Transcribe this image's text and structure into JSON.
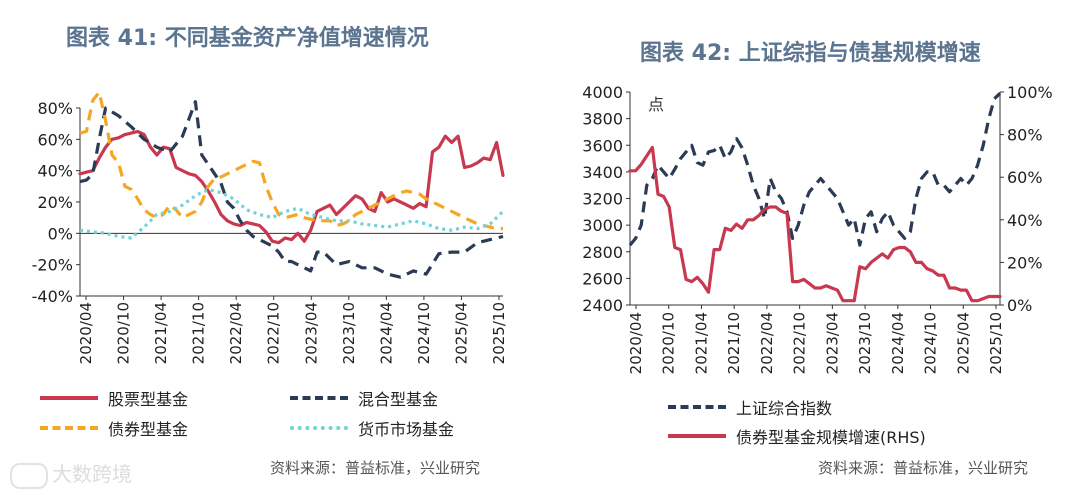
{
  "watermark": "大数跨境",
  "chart_data": [
    {
      "type": "line",
      "title": "图表 41: 不同基金资产净值增速情况",
      "source": "资料来源：普益标准，兴业研究",
      "y_ticks": [
        "80%",
        "60%",
        "40%",
        "20%",
        "0%",
        "-20%",
        "-40%"
      ],
      "ylim": [
        -40,
        80
      ],
      "x_tick_labels": [
        "2020/04",
        "2020/10",
        "2021/04",
        "2021/10",
        "2022/04",
        "2022/10",
        "2023/04",
        "2023/10",
        "2024/04",
        "2024/10",
        "2025/04",
        "2025/10"
      ],
      "x_range": [
        0,
        66
      ],
      "legend_labels": [
        "股票型基金",
        "混合型基金",
        "债券型基金",
        "货币市场基金"
      ],
      "series": [
        {
          "name": "股票型基金",
          "color": "#c8384f",
          "dash": "none",
          "x": [
            0,
            1,
            2,
            3,
            4,
            5,
            6,
            7,
            8,
            9,
            10,
            11,
            12,
            13,
            14,
            15,
            16,
            17,
            18,
            19,
            20,
            21,
            22,
            23,
            24,
            25,
            26,
            27,
            28,
            29,
            30,
            31,
            32,
            33,
            34,
            35,
            36,
            37,
            38,
            39,
            40,
            41,
            42,
            43,
            44,
            45,
            46,
            47,
            48,
            49,
            50,
            51,
            52,
            53,
            54,
            55,
            56,
            57,
            58,
            59,
            60,
            61,
            62,
            63,
            64,
            65,
            66
          ],
          "values": [
            38,
            39,
            40,
            48,
            55,
            60,
            61,
            63,
            64,
            65,
            63,
            55,
            50,
            55,
            54,
            42,
            40,
            38,
            37,
            33,
            27,
            20,
            12,
            8,
            6,
            5,
            7,
            6,
            5,
            1,
            -5,
            -6,
            -3,
            -4,
            0,
            -5,
            2,
            14,
            16,
            18,
            12,
            16,
            20,
            24,
            22,
            16,
            14,
            26,
            20,
            22,
            20,
            18,
            16,
            19,
            17,
            52,
            55,
            62,
            58,
            62,
            42,
            43,
            45,
            48,
            47,
            58,
            37
          ]
        },
        {
          "name": "混合型基金",
          "color": "#2b3a55",
          "dash": "11,7",
          "x": [
            0,
            1,
            2,
            3,
            4,
            6,
            8,
            10,
            12,
            14,
            16,
            18,
            19,
            20,
            21,
            22,
            23,
            24,
            25,
            26,
            27,
            28,
            30,
            31,
            32,
            33,
            34,
            35,
            36,
            37,
            38,
            40,
            42,
            44,
            46,
            48,
            50,
            52,
            54,
            56,
            58,
            60,
            62,
            64,
            65,
            66
          ],
          "values": [
            33,
            34,
            38,
            60,
            80,
            75,
            68,
            60,
            55,
            52,
            62,
            84,
            50,
            44,
            38,
            32,
            20,
            16,
            8,
            2,
            -2,
            -4,
            -8,
            -12,
            -18,
            -18,
            -20,
            -22,
            -24,
            -12,
            -12,
            -20,
            -18,
            -22,
            -22,
            -26,
            -28,
            -24,
            -26,
            -13,
            -12,
            -12,
            -6,
            -4,
            -3,
            -2
          ]
        },
        {
          "name": "债券型基金",
          "color": "#f5a623",
          "dash": "11,7",
          "x": [
            0,
            1,
            2,
            3,
            4,
            5,
            6,
            7,
            8,
            9,
            10,
            11,
            12,
            13,
            14,
            15,
            16,
            17,
            18,
            19,
            20,
            21,
            22,
            23,
            24,
            25,
            26,
            27,
            28,
            29,
            30,
            31,
            32,
            33,
            34,
            35,
            36,
            37,
            38,
            39,
            40,
            41,
            42,
            43,
            44,
            45,
            46,
            47,
            48,
            49,
            50,
            51,
            52,
            53,
            54,
            55,
            56,
            57,
            58,
            59,
            60,
            61,
            62,
            63,
            64,
            65,
            66
          ],
          "values": [
            64,
            65,
            85,
            90,
            72,
            50,
            45,
            30,
            28,
            22,
            15,
            12,
            10,
            12,
            18,
            15,
            10,
            12,
            14,
            20,
            30,
            35,
            36,
            38,
            40,
            42,
            44,
            46,
            45,
            30,
            20,
            12,
            10,
            11,
            12,
            10,
            9,
            8,
            8,
            8,
            5,
            6,
            8,
            12,
            14,
            16,
            18,
            20,
            22,
            24,
            26,
            27,
            26,
            25,
            22,
            20,
            18,
            16,
            14,
            12,
            10,
            8,
            6,
            5,
            4,
            3,
            3
          ]
        },
        {
          "name": "货币市场基金",
          "color": "#6fd3d8",
          "dash": "3,4",
          "x": [
            0,
            2,
            4,
            6,
            8,
            10,
            12,
            14,
            16,
            18,
            20,
            22,
            24,
            26,
            28,
            30,
            32,
            34,
            36,
            38,
            40,
            42,
            44,
            46,
            48,
            50,
            52,
            54,
            56,
            58,
            60,
            62,
            64,
            66
          ],
          "values": [
            2,
            1,
            0,
            -2,
            -3,
            4,
            12,
            14,
            18,
            24,
            28,
            26,
            22,
            15,
            12,
            10,
            14,
            16,
            12,
            10,
            8,
            8,
            6,
            5,
            4,
            6,
            8,
            6,
            3,
            2,
            4,
            3,
            6,
            14
          ]
        }
      ]
    },
    {
      "type": "line",
      "title": "图表 42: 上证综指与债基规模增速",
      "source": "资料来源：普益标准，兴业研究",
      "y_ticks": [
        "4000",
        "3800",
        "3600",
        "3400",
        "3200",
        "3000",
        "2800",
        "2600",
        "2400"
      ],
      "ylim": [
        2400,
        4000
      ],
      "y_right_ticks": [
        "100%",
        "80%",
        "60%",
        "40%",
        "20%",
        "0%"
      ],
      "ylim_right": [
        0,
        100
      ],
      "y_unit_label": "点",
      "x_tick_labels": [
        "2020/04",
        "2020/10",
        "2021/04",
        "2021/10",
        "2022/04",
        "2022/10",
        "2023/04",
        "2023/10",
        "2024/04",
        "2024/10",
        "2025/04",
        "2025/10"
      ],
      "x_range": [
        0,
        66
      ],
      "legend_labels": [
        "上证综合指数",
        "债券型基金规模增速(RHS)"
      ],
      "series": [
        {
          "name": "上证综合指数",
          "axis": "left",
          "color": "#2b3a55",
          "dash": "11,7",
          "x": [
            0,
            1,
            2,
            3,
            4,
            5,
            6,
            7,
            8,
            9,
            10,
            11,
            12,
            13,
            14,
            15,
            16,
            17,
            18,
            19,
            20,
            21,
            22,
            23,
            24,
            25,
            26,
            27,
            28,
            29,
            30,
            31,
            32,
            33,
            34,
            35,
            36,
            37,
            38,
            39,
            40,
            41,
            42,
            43,
            44,
            45,
            46,
            47,
            48,
            49,
            50,
            51,
            52,
            53,
            54,
            55,
            56,
            57,
            58,
            59,
            60,
            61,
            62,
            63,
            64,
            65,
            66
          ],
          "values": [
            2850,
            2900,
            3000,
            3300,
            3350,
            3450,
            3400,
            3350,
            3420,
            3500,
            3550,
            3600,
            3470,
            3450,
            3550,
            3560,
            3600,
            3500,
            3550,
            3650,
            3580,
            3450,
            3300,
            3200,
            3050,
            3350,
            3250,
            3200,
            3100,
            2900,
            3000,
            3150,
            3250,
            3300,
            3350,
            3300,
            3250,
            3200,
            3100,
            3000,
            3050,
            2850,
            3050,
            3100,
            2950,
            3050,
            3100,
            3000,
            2950,
            2900,
            2950,
            3200,
            3350,
            3400,
            3400,
            3300,
            3300,
            3250,
            3300,
            3350,
            3300,
            3350,
            3450,
            3600,
            3800,
            3950,
            3990
          ]
        },
        {
          "name": "债券型基金规模增速(RHS)",
          "axis": "right",
          "color": "#c8384f",
          "dash": "none",
          "x": [
            0,
            1,
            2,
            3,
            4,
            5,
            6,
            7,
            8,
            9,
            10,
            11,
            12,
            13,
            14,
            15,
            16,
            17,
            18,
            19,
            20,
            21,
            22,
            23,
            24,
            25,
            26,
            27,
            28,
            29,
            30,
            31,
            32,
            33,
            34,
            35,
            36,
            37,
            38,
            39,
            40,
            41,
            42,
            43,
            44,
            45,
            46,
            47,
            48,
            49,
            50,
            51,
            52,
            53,
            54,
            55,
            56,
            57,
            58,
            59,
            60,
            61,
            62,
            63,
            64,
            65,
            66
          ],
          "values": [
            63,
            63,
            66,
            70,
            74,
            52,
            51,
            46,
            27,
            26,
            12,
            11,
            13,
            10,
            6,
            26,
            26,
            36,
            35,
            38,
            36,
            40,
            40,
            42,
            45,
            46,
            46,
            44,
            43,
            11,
            11,
            12,
            10,
            8,
            8,
            9,
            8,
            7,
            2,
            2,
            2,
            18,
            17,
            20,
            22,
            24,
            22,
            26,
            27,
            27,
            25,
            20,
            20,
            17,
            16,
            14,
            14,
            8,
            8,
            7,
            7,
            2,
            2,
            3,
            4,
            4,
            4
          ]
        }
      ]
    }
  ]
}
